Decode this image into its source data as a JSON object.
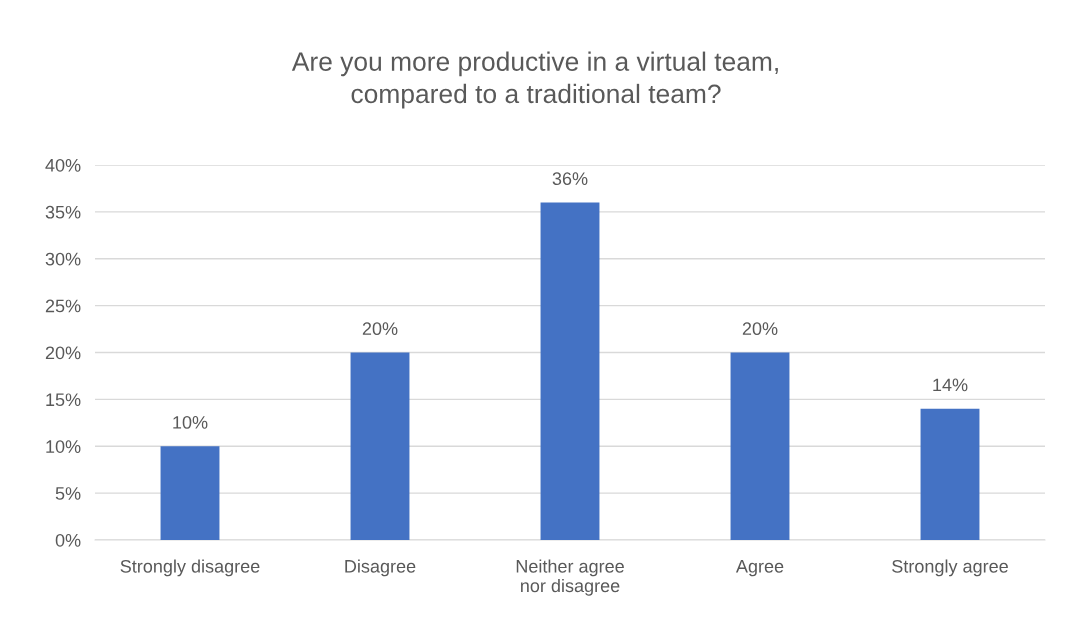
{
  "chart_data": {
    "type": "bar",
    "title": "Are you more productive in a virtual team,\ncompared to a traditional team?",
    "categories": [
      "Strongly disagree",
      "Disagree",
      "Neither agree\nnor disagree",
      "Agree",
      "Strongly agree"
    ],
    "values": [
      10,
      20,
      36,
      20,
      14
    ],
    "value_labels": [
      "10%",
      "20%",
      "36%",
      "20%",
      "14%"
    ],
    "color": "#4472c4",
    "ylim": [
      0,
      40
    ],
    "yticks": [
      {
        "value": 0,
        "label": "0%"
      },
      {
        "value": 5,
        "label": "5%"
      },
      {
        "value": 10,
        "label": "10%"
      },
      {
        "value": 15,
        "label": "15%"
      },
      {
        "value": 20,
        "label": "20%"
      },
      {
        "value": 25,
        "label": "25%"
      },
      {
        "value": 30,
        "label": "30%"
      },
      {
        "value": 35,
        "label": "35%"
      },
      {
        "value": 40,
        "label": "40%"
      }
    ],
    "grid": "y"
  }
}
